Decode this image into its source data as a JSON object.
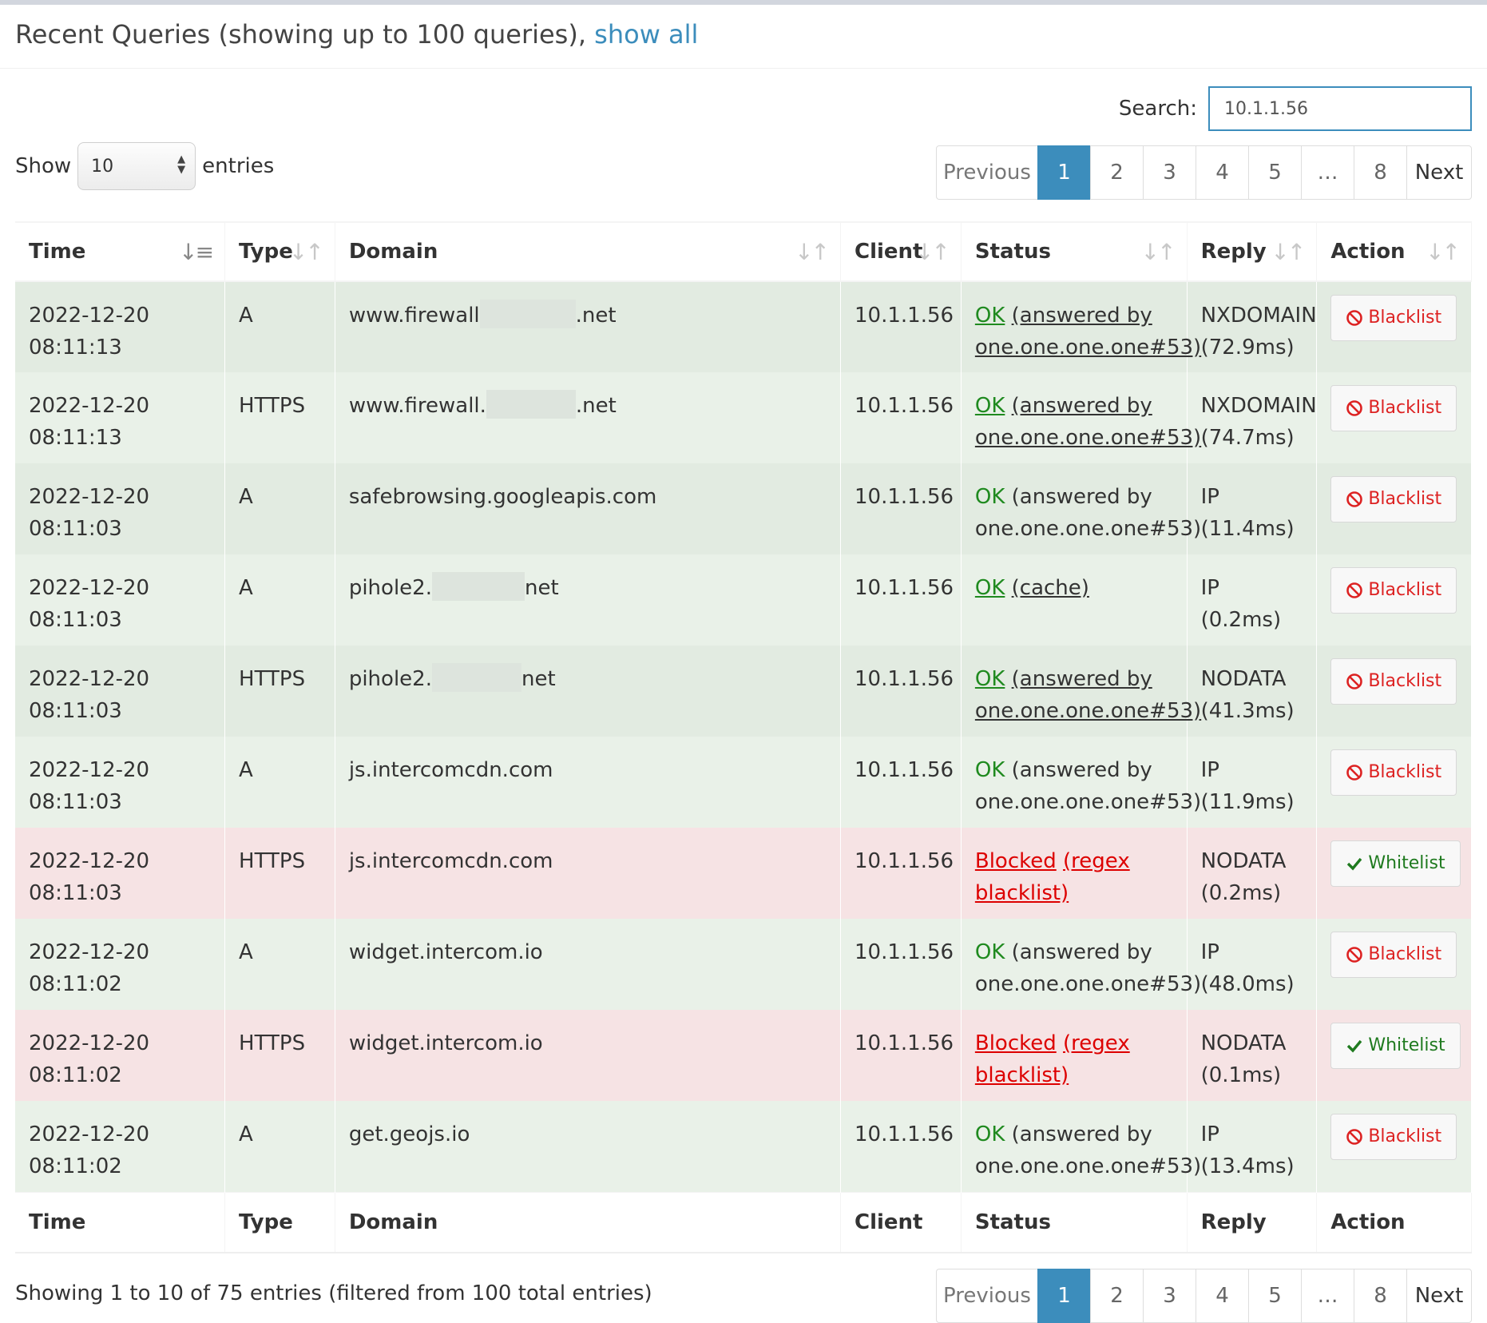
{
  "header": {
    "title": "Recent Queries (showing up to 100 queries),",
    "show_all": "show all"
  },
  "search": {
    "label": "Search:",
    "value": "10.1.1.56"
  },
  "length": {
    "show": "Show",
    "value": "10",
    "entries": "entries"
  },
  "pagination": {
    "previous": "Previous",
    "next": "Next",
    "pages": [
      "1",
      "2",
      "3",
      "4",
      "5",
      "…",
      "8"
    ],
    "active": "1"
  },
  "columns": [
    "Time",
    "Type",
    "Domain",
    "Client",
    "Status",
    "Reply",
    "Action"
  ],
  "rows": [
    {
      "date": "2022-12-20",
      "time": "08:11:13",
      "type": "A",
      "domain_a": "www.firewall",
      "domain_b": ".net",
      "client": "10.1.1.56",
      "status": "OK",
      "status_detail": "(answered by one.one.one.one#53)",
      "status_class": "ok",
      "reply": "NXDOMAIN",
      "reply_time": "(72.9ms)",
      "action": "Blacklist"
    },
    {
      "date": "2022-12-20",
      "time": "08:11:13",
      "type": "HTTPS",
      "domain_a": "www.firewall.",
      "domain_b": ".net",
      "client": "10.1.1.56",
      "status": "OK",
      "status_detail": "(answered by one.one.one.one#53)",
      "status_class": "ok",
      "reply": "NXDOMAIN",
      "reply_time": "(74.7ms)",
      "action": "Blacklist"
    },
    {
      "date": "2022-12-20",
      "time": "08:11:03",
      "type": "A",
      "domain_a": "safebrowsing.googleapis.com",
      "domain_b": "",
      "client": "10.1.1.56",
      "status": "OK",
      "status_detail": "(answered by one.one.one.one#53)",
      "status_class": "ok",
      "reply": "IP",
      "reply_time": "(11.4ms)",
      "action": "Blacklist"
    },
    {
      "date": "2022-12-20",
      "time": "08:11:03",
      "type": "A",
      "domain_a": "pihole2.",
      "domain_b": "net",
      "client": "10.1.1.56",
      "status": "OK",
      "status_detail": "(cache)",
      "status_class": "ok",
      "reply": "IP (0.2ms)",
      "reply_time": "",
      "action": "Blacklist"
    },
    {
      "date": "2022-12-20",
      "time": "08:11:03",
      "type": "HTTPS",
      "domain_a": "pihole2.",
      "domain_b": "net",
      "client": "10.1.1.56",
      "status": "OK",
      "status_detail": "(answered by one.one.one.one#53)",
      "status_class": "ok",
      "reply": "NODATA",
      "reply_time": "(41.3ms)",
      "action": "Blacklist"
    },
    {
      "date": "2022-12-20",
      "time": "08:11:03",
      "type": "A",
      "domain_a": "js.intercomcdn.com",
      "domain_b": "",
      "client": "10.1.1.56",
      "status": "OK",
      "status_detail": "(answered by one.one.one.one#53)",
      "status_class": "ok",
      "reply": "IP",
      "reply_time": "(11.9ms)",
      "action": "Blacklist"
    },
    {
      "date": "2022-12-20",
      "time": "08:11:03",
      "type": "HTTPS",
      "domain_a": "js.intercomcdn.com",
      "domain_b": "",
      "client": "10.1.1.56",
      "status": "Blocked",
      "status_detail": "(regex blacklist)",
      "status_class": "blk",
      "reply": "NODATA",
      "reply_time": "(0.2ms)",
      "action": "Whitelist"
    },
    {
      "date": "2022-12-20",
      "time": "08:11:02",
      "type": "A",
      "domain_a": "widget.intercom.io",
      "domain_b": "",
      "client": "10.1.1.56",
      "status": "OK",
      "status_detail": "(answered by one.one.one.one#53)",
      "status_class": "ok",
      "reply": "IP",
      "reply_time": "(48.0ms)",
      "action": "Blacklist"
    },
    {
      "date": "2022-12-20",
      "time": "08:11:02",
      "type": "HTTPS",
      "domain_a": "widget.intercom.io",
      "domain_b": "",
      "client": "10.1.1.56",
      "status": "Blocked",
      "status_detail": "(regex blacklist)",
      "status_class": "blk",
      "reply": "NODATA",
      "reply_time": "(0.1ms)",
      "action": "Whitelist"
    },
    {
      "date": "2022-12-20",
      "time": "08:11:02",
      "type": "A",
      "domain_a": "get.geojs.io",
      "domain_b": "",
      "client": "10.1.1.56",
      "status": "OK",
      "status_detail": "(answered by one.one.one.one#53)",
      "status_class": "ok",
      "reply": "IP",
      "reply_time": "(13.4ms)",
      "action": "Blacklist"
    }
  ],
  "info": "Showing 1 to 10 of 75 entries (filtered from 100 total entries)",
  "colors": {
    "accent": "#3c8dbc",
    "ok": "#1f8a1f",
    "blocked": "#dd0000",
    "ok_row": "#e9f1e8",
    "blocked_row": "#f6e3e4"
  },
  "icons": {
    "sort": "sort-icon",
    "blacklist": "ban-icon",
    "whitelist": "check-icon"
  }
}
